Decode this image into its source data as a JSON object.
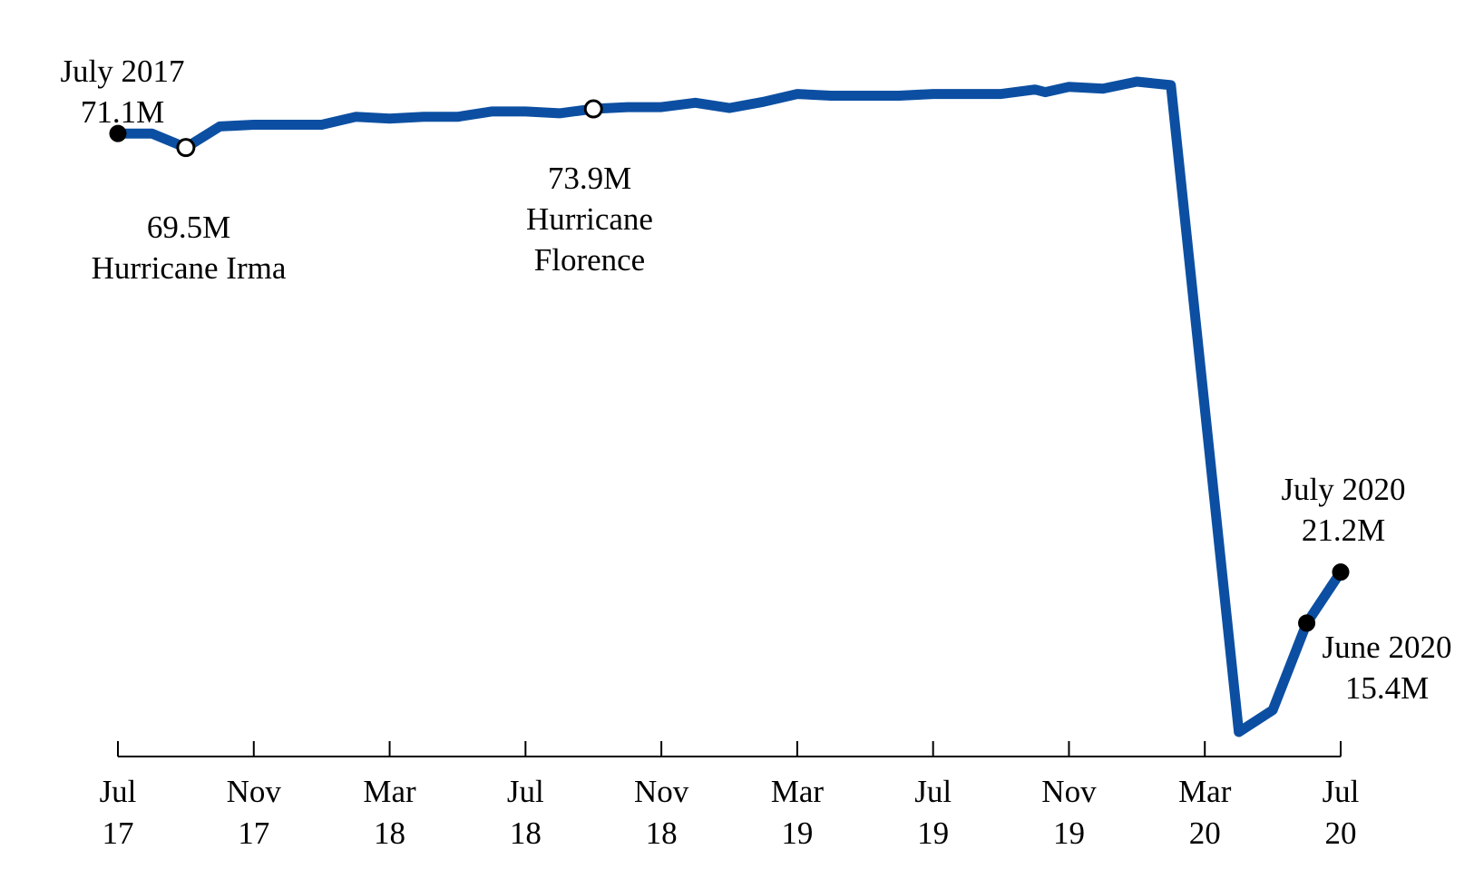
{
  "chart_data": {
    "type": "line",
    "title": "",
    "xlabel": "",
    "ylabel": "",
    "x_ticks": [
      {
        "date": "2017-07",
        "line1": "Jul",
        "line2": "17"
      },
      {
        "date": "2017-11",
        "line1": "Nov",
        "line2": "17"
      },
      {
        "date": "2018-03",
        "line1": "Mar",
        "line2": "18"
      },
      {
        "date": "2018-07",
        "line1": "Jul",
        "line2": "18"
      },
      {
        "date": "2018-11",
        "line1": "Nov",
        "line2": "18"
      },
      {
        "date": "2019-03",
        "line1": "Mar",
        "line2": "19"
      },
      {
        "date": "2019-07",
        "line1": "Jul",
        "line2": "19"
      },
      {
        "date": "2019-11",
        "line1": "Nov",
        "line2": "19"
      },
      {
        "date": "2020-03",
        "line1": "Mar",
        "line2": "20"
      },
      {
        "date": "2020-07",
        "line1": "Jul",
        "line2": "20"
      }
    ],
    "series": [
      {
        "color": "#0c4fa2",
        "points": [
          {
            "date": "2017-07",
            "value": 71.1
          },
          {
            "date": "2017-08",
            "value": 71.1
          },
          {
            "date": "2017-09",
            "value": 69.5
          },
          {
            "date": "2017-10",
            "value": 71.9
          },
          {
            "date": "2017-11",
            "value": 72.1
          },
          {
            "date": "2017-12",
            "value": 72.1
          },
          {
            "date": "2018-01",
            "value": 72.1
          },
          {
            "date": "2018-02",
            "value": 73.0
          },
          {
            "date": "2018-03",
            "value": 72.8
          },
          {
            "date": "2018-04",
            "value": 73.0
          },
          {
            "date": "2018-05",
            "value": 73.0
          },
          {
            "date": "2018-06",
            "value": 73.6
          },
          {
            "date": "2018-07",
            "value": 73.6
          },
          {
            "date": "2018-08",
            "value": 73.4
          },
          {
            "date": "2018-09",
            "value": 73.9
          },
          {
            "date": "2018-10",
            "value": 74.1
          },
          {
            "date": "2018-11",
            "value": 74.1
          },
          {
            "date": "2018-12",
            "value": 74.6
          },
          {
            "date": "2019-01",
            "value": 74.0
          },
          {
            "date": "2019-02",
            "value": 74.7
          },
          {
            "date": "2019-03",
            "value": 75.6
          },
          {
            "date": "2019-04",
            "value": 75.4
          },
          {
            "date": "2019-05",
            "value": 75.4
          },
          {
            "date": "2019-06",
            "value": 75.4
          },
          {
            "date": "2019-07",
            "value": 75.6
          },
          {
            "date": "2019-08",
            "value": 75.6
          },
          {
            "date": "2019-09",
            "value": 75.6
          },
          {
            "date": "2019-10",
            "value": 76.1
          },
          {
            "date": "2019-10-10",
            "value": 75.8
          },
          {
            "date": "2019-11",
            "value": 76.4
          },
          {
            "date": "2019-12",
            "value": 76.2
          },
          {
            "date": "2020-01",
            "value": 77.0
          },
          {
            "date": "2020-02",
            "value": 76.6
          },
          {
            "date": "2020-04",
            "value": 3.0
          },
          {
            "date": "2020-05",
            "value": 5.5
          },
          {
            "date": "2020-06",
            "value": 15.4
          },
          {
            "date": "2020-07",
            "value": 21.2
          }
        ]
      }
    ],
    "annotations": [
      {
        "date": "2017-07",
        "value": 71.1,
        "marker": "filled",
        "anchor": "above",
        "lines": [
          "July 2017",
          "71.1M"
        ]
      },
      {
        "date": "2017-09",
        "value": 69.5,
        "marker": "open",
        "anchor": "below",
        "lines": [
          "69.5M",
          "Hurricane Irma"
        ]
      },
      {
        "date": "2018-09",
        "value": 73.9,
        "marker": "open",
        "anchor": "below",
        "lines": [
          "73.9M",
          "Hurricane",
          "Florence"
        ]
      },
      {
        "date": "2020-07",
        "value": 21.2,
        "marker": "filled",
        "anchor": "above",
        "lines": [
          "July 2020",
          "21.2M"
        ]
      },
      {
        "date": "2020-06",
        "value": 15.4,
        "marker": "filled",
        "anchor": "below-right",
        "lines": [
          "June 2020",
          "15.4M"
        ]
      }
    ],
    "grid": false,
    "legend": "none"
  }
}
